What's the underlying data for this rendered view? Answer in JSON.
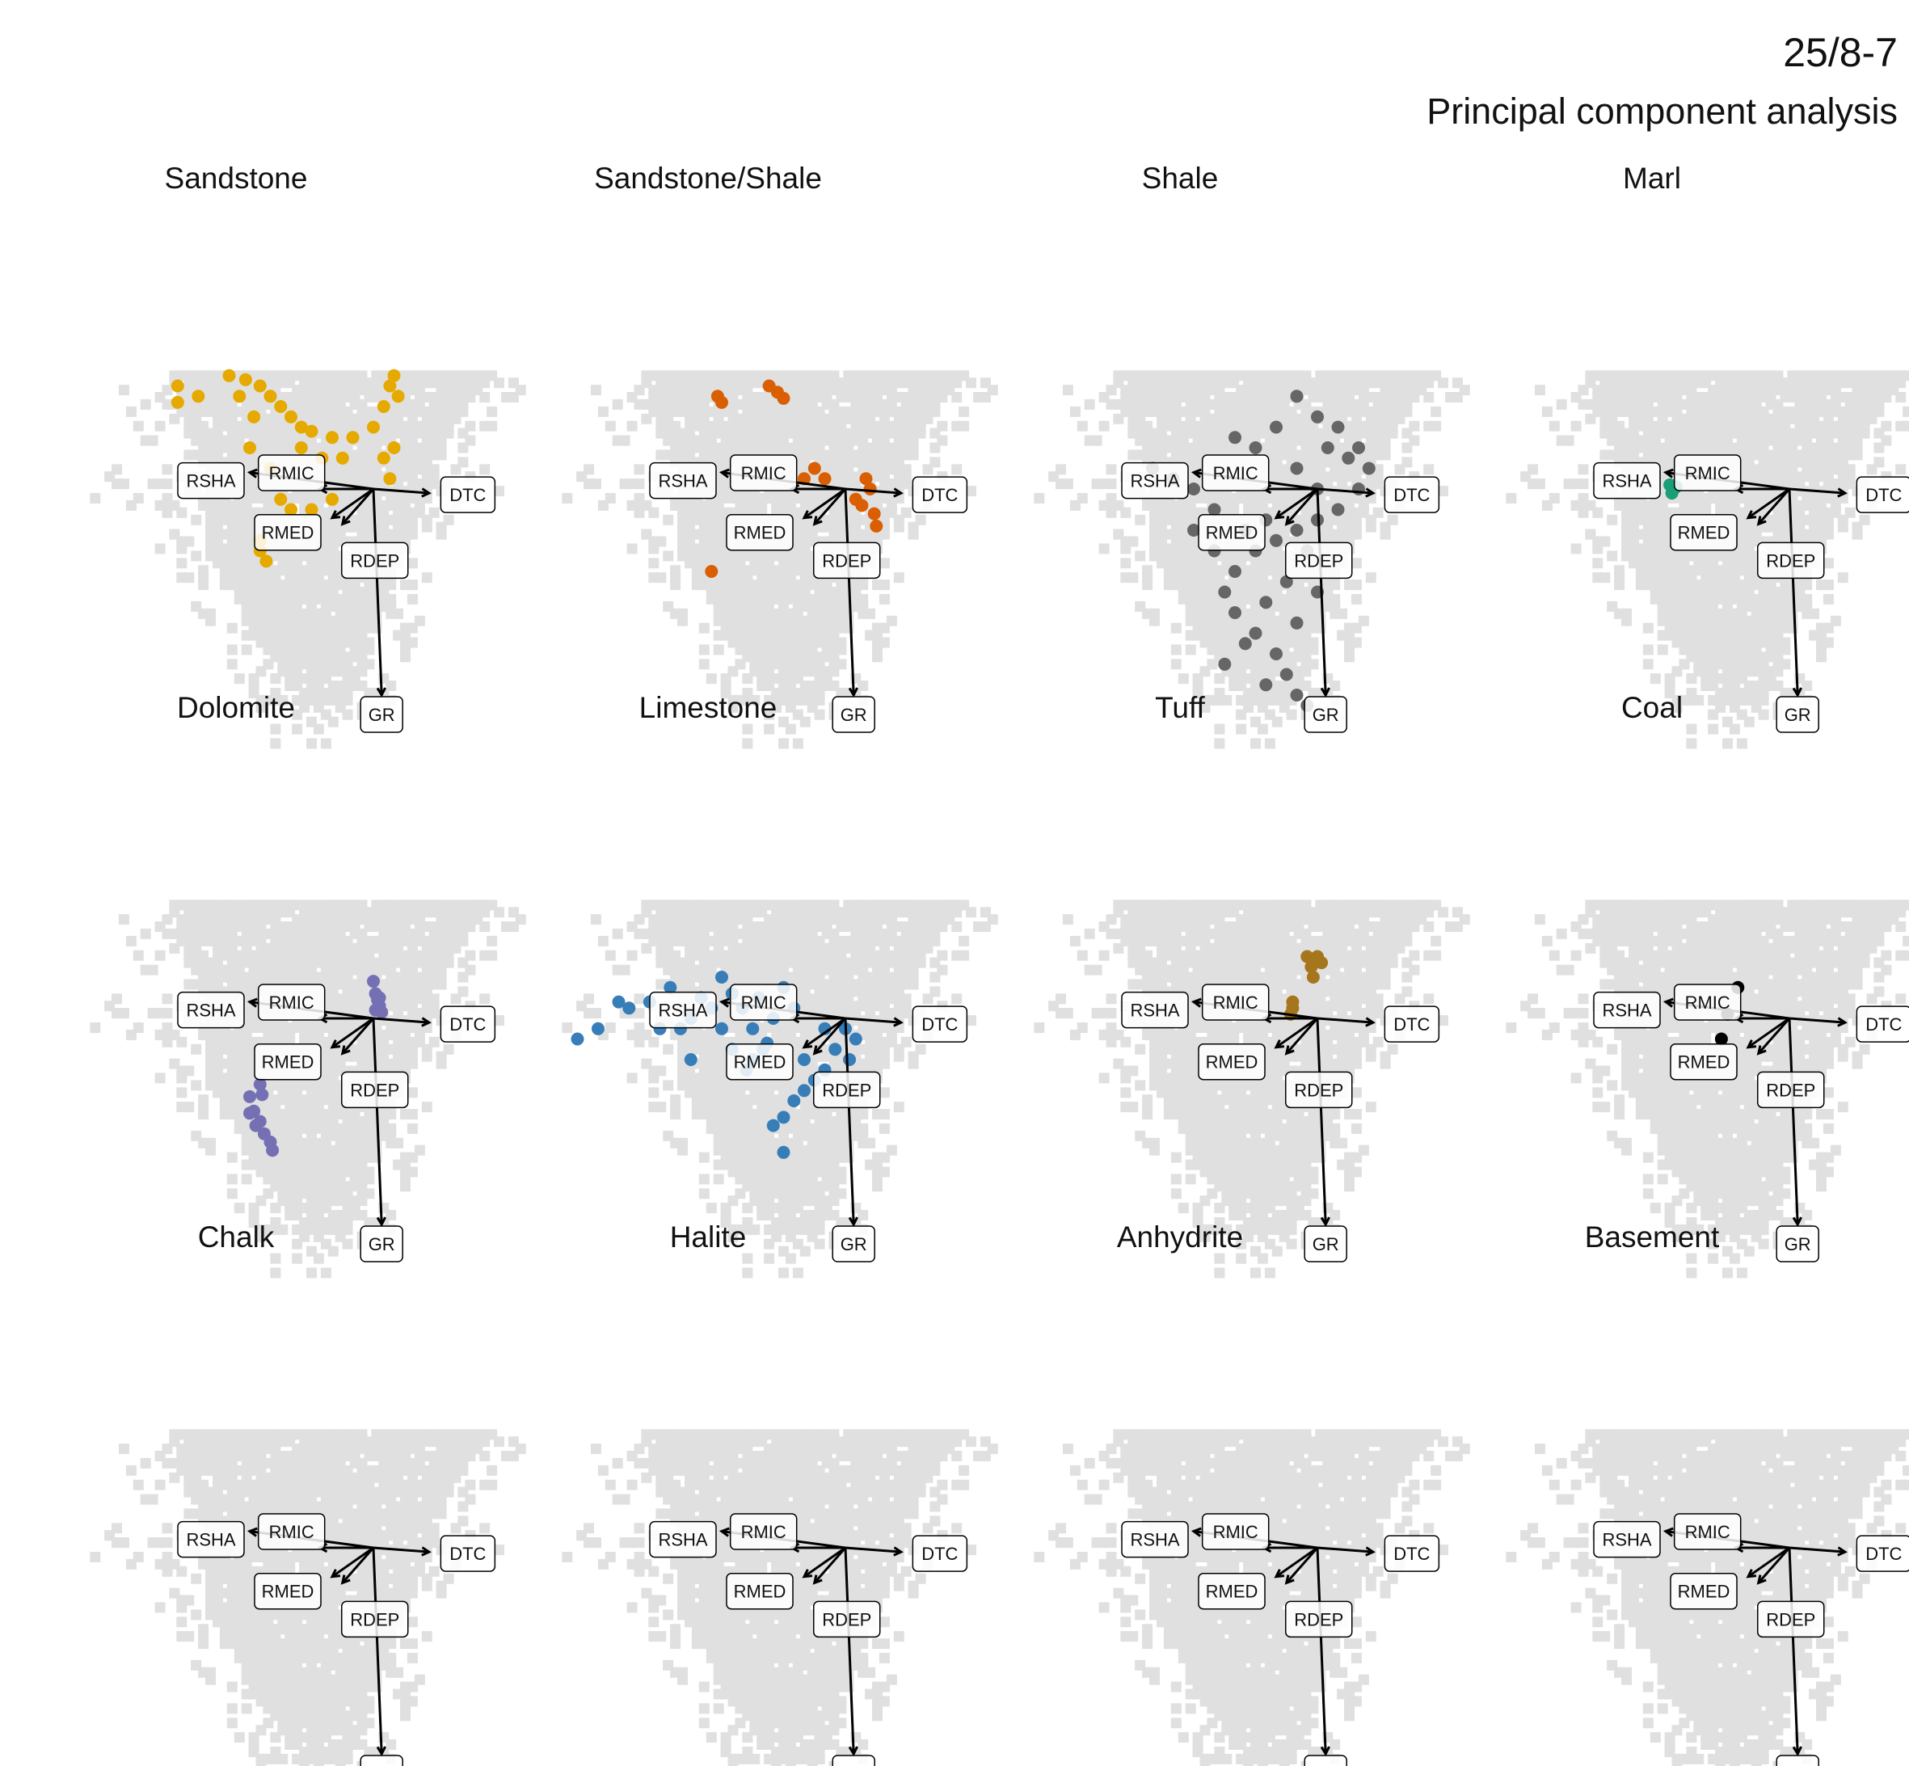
{
  "title": "25/8-7",
  "subtitle": "Principal component analysis",
  "colors": {
    "background_cells": "#e0e0e0",
    "arrow": "#000000",
    "label_box_fill": "#ffffff",
    "label_box_stroke": "#000000"
  },
  "loadings": [
    {
      "name": "GR",
      "x": 0.04,
      "y": -1.0
    },
    {
      "name": "DTC",
      "x": 0.27,
      "y": -0.02
    },
    {
      "name": "RMIC",
      "x": -0.26,
      "y": 0.0
    },
    {
      "name": "RMED",
      "x": -0.2,
      "y": -0.14
    },
    {
      "name": "RSHA",
      "x": -0.6,
      "y": 0.08
    },
    {
      "name": "RDEP",
      "x": -0.15,
      "y": -0.17
    }
  ],
  "background_shape": {
    "top_y": 0.55,
    "bottom_y": -1.15,
    "x_range": [
      -1.25,
      0.65
    ]
  },
  "chart_data": [
    {
      "type": "scatter",
      "title": "Sandstone",
      "color": "#E6A900",
      "points": [
        [
          -0.7,
          0.55
        ],
        [
          -0.62,
          0.53
        ],
        [
          -0.55,
          0.5
        ],
        [
          -0.5,
          0.45
        ],
        [
          -0.45,
          0.4
        ],
        [
          -0.4,
          0.35
        ],
        [
          -0.35,
          0.3
        ],
        [
          -0.3,
          0.28
        ],
        [
          -0.2,
          0.25
        ],
        [
          -0.1,
          0.25
        ],
        [
          0.0,
          0.3
        ],
        [
          0.05,
          0.4
        ],
        [
          0.08,
          0.5
        ],
        [
          0.1,
          0.55
        ],
        [
          0.12,
          0.45
        ],
        [
          0.1,
          0.2
        ],
        [
          0.08,
          0.05
        ],
        [
          -0.6,
          0.2
        ],
        [
          -0.5,
          0.1
        ],
        [
          -0.45,
          -0.05
        ],
        [
          -0.4,
          -0.1
        ],
        [
          -0.3,
          -0.1
        ],
        [
          -0.2,
          -0.05
        ],
        [
          -0.95,
          0.5
        ],
        [
          -0.85,
          0.45
        ],
        [
          -0.95,
          0.42
        ],
        [
          -0.55,
          -0.3
        ],
        [
          -0.55,
          -0.25
        ],
        [
          -0.52,
          -0.35
        ],
        [
          -0.25,
          0.15
        ],
        [
          -0.35,
          0.2
        ],
        [
          -0.15,
          0.15
        ],
        [
          0.05,
          0.15
        ],
        [
          -0.65,
          0.45
        ],
        [
          -0.58,
          0.35
        ]
      ]
    },
    {
      "type": "scatter",
      "title": "Sandstone/Shale",
      "color": "#D95F02",
      "points": [
        [
          -0.62,
          0.45
        ],
        [
          -0.6,
          0.42
        ],
        [
          -0.37,
          0.5
        ],
        [
          -0.33,
          0.47
        ],
        [
          -0.3,
          0.44
        ],
        [
          -0.15,
          0.1
        ],
        [
          -0.1,
          0.05
        ],
        [
          0.1,
          0.05
        ],
        [
          0.12,
          0.0
        ],
        [
          0.05,
          -0.05
        ],
        [
          0.08,
          -0.08
        ],
        [
          0.14,
          -0.12
        ],
        [
          0.15,
          -0.18
        ],
        [
          -0.2,
          0.05
        ],
        [
          -0.65,
          -0.4
        ]
      ]
    },
    {
      "type": "scatter",
      "title": "Shale",
      "color": "#666666",
      "points": [
        [
          -0.1,
          0.45
        ],
        [
          0.0,
          0.35
        ],
        [
          0.1,
          0.3
        ],
        [
          0.2,
          0.2
        ],
        [
          0.25,
          0.1
        ],
        [
          0.2,
          0.0
        ],
        [
          0.1,
          -0.1
        ],
        [
          0.0,
          -0.15
        ],
        [
          -0.1,
          -0.2
        ],
        [
          -0.2,
          -0.25
        ],
        [
          -0.3,
          -0.3
        ],
        [
          -0.4,
          -0.4
        ],
        [
          -0.45,
          -0.5
        ],
        [
          -0.4,
          -0.6
        ],
        [
          -0.3,
          -0.7
        ],
        [
          -0.2,
          -0.8
        ],
        [
          -0.15,
          -0.9
        ],
        [
          -0.1,
          -1.0
        ],
        [
          -0.05,
          -1.05
        ],
        [
          -0.5,
          -0.1
        ],
        [
          -0.6,
          0.0
        ],
        [
          -0.7,
          0.05
        ],
        [
          -0.8,
          0.1
        ],
        [
          -0.6,
          -0.2
        ],
        [
          -0.5,
          -0.3
        ],
        [
          -0.35,
          -0.2
        ],
        [
          -0.25,
          -0.15
        ],
        [
          0.05,
          0.2
        ],
        [
          0.15,
          0.15
        ],
        [
          0.0,
          0.0
        ],
        [
          -0.1,
          0.1
        ],
        [
          -0.05,
          -0.3
        ],
        [
          -0.15,
          -0.45
        ],
        [
          -0.25,
          -0.55
        ],
        [
          -0.35,
          -0.75
        ],
        [
          -0.45,
          -0.85
        ],
        [
          -0.25,
          -0.95
        ],
        [
          -0.1,
          -0.65
        ],
        [
          0.0,
          -0.5
        ],
        [
          -0.3,
          0.2
        ],
        [
          -0.2,
          0.3
        ],
        [
          -0.4,
          0.25
        ]
      ]
    },
    {
      "type": "scatter",
      "title": "Marl",
      "color": "#1B9E77",
      "points": [
        [
          -0.58,
          0.02
        ],
        [
          -0.56,
          0.0
        ],
        [
          -0.57,
          -0.02
        ],
        [
          -0.55,
          0.01
        ]
      ]
    },
    {
      "type": "scatter",
      "title": "Dolomite",
      "color": "#7570B3",
      "points": [
        [
          0.0,
          0.18
        ],
        [
          0.01,
          0.12
        ],
        [
          0.02,
          0.09
        ],
        [
          0.03,
          0.06
        ],
        [
          0.04,
          0.03
        ],
        [
          0.01,
          0.04
        ],
        [
          0.03,
          0.1
        ],
        [
          -0.55,
          -0.32
        ],
        [
          -0.54,
          -0.37
        ],
        [
          -0.6,
          -0.38
        ],
        [
          -0.58,
          -0.45
        ],
        [
          -0.55,
          -0.5
        ],
        [
          -0.53,
          -0.56
        ],
        [
          -0.5,
          -0.6
        ],
        [
          -0.49,
          -0.64
        ],
        [
          -0.57,
          -0.52
        ],
        [
          -0.6,
          -0.46
        ]
      ]
    },
    {
      "type": "scatter",
      "title": "Limestone",
      "color": "#377EB8",
      "points": [
        [
          -0.6,
          0.2
        ],
        [
          -0.55,
          0.12
        ],
        [
          -0.5,
          0.05
        ],
        [
          -0.45,
          -0.05
        ],
        [
          -0.4,
          -0.15
        ],
        [
          -0.45,
          -0.2
        ],
        [
          -0.55,
          -0.15
        ],
        [
          -0.6,
          -0.05
        ],
        [
          -0.65,
          0.05
        ],
        [
          -0.7,
          0.1
        ],
        [
          -0.75,
          0.0
        ],
        [
          -0.8,
          -0.05
        ],
        [
          -0.85,
          0.15
        ],
        [
          -0.95,
          0.08
        ],
        [
          -1.05,
          0.05
        ],
        [
          -1.1,
          0.08
        ],
        [
          -1.2,
          -0.05
        ],
        [
          -1.3,
          -0.1
        ],
        [
          -0.9,
          -0.05
        ],
        [
          -0.75,
          -0.2
        ],
        [
          -0.35,
          0.0
        ],
        [
          -0.25,
          0.05
        ],
        [
          -0.1,
          -0.05
        ],
        [
          0.0,
          -0.05
        ],
        [
          0.05,
          -0.1
        ],
        [
          -0.05,
          -0.15
        ],
        [
          0.02,
          -0.2
        ],
        [
          -0.15,
          -0.3
        ],
        [
          -0.2,
          -0.35
        ],
        [
          -0.25,
          -0.4
        ],
        [
          -0.3,
          -0.48
        ],
        [
          -0.35,
          -0.52
        ],
        [
          -0.3,
          -0.65
        ],
        [
          -0.48,
          -0.25
        ],
        [
          -0.38,
          -0.12
        ],
        [
          -0.42,
          0.1
        ],
        [
          -0.3,
          0.15
        ],
        [
          -0.2,
          -0.2
        ],
        [
          -0.1,
          -0.25
        ]
      ]
    },
    {
      "type": "scatter",
      "title": "Tuff",
      "color": "#A6761D",
      "points": [
        [
          -0.05,
          0.3
        ],
        [
          0.0,
          0.3
        ],
        [
          0.02,
          0.27
        ],
        [
          -0.03,
          0.25
        ],
        [
          -0.02,
          0.2
        ],
        [
          -0.12,
          0.05
        ],
        [
          -0.13,
          0.02
        ],
        [
          -0.12,
          0.08
        ]
      ]
    },
    {
      "type": "scatter",
      "title": "Coal",
      "color": "#000000",
      "points": [
        [
          -0.3,
          0.02
        ],
        [
          -0.25,
          0.15
        ],
        [
          -0.33,
          -0.1
        ]
      ]
    },
    {
      "type": "scatter",
      "title": "Chalk",
      "color": "#999999",
      "points": []
    },
    {
      "type": "scatter",
      "title": "Halite",
      "color": "#999999",
      "points": []
    },
    {
      "type": "scatter",
      "title": "Anhydrite",
      "color": "#999999",
      "points": []
    },
    {
      "type": "scatter",
      "title": "Basement",
      "color": "#999999",
      "points": []
    }
  ]
}
